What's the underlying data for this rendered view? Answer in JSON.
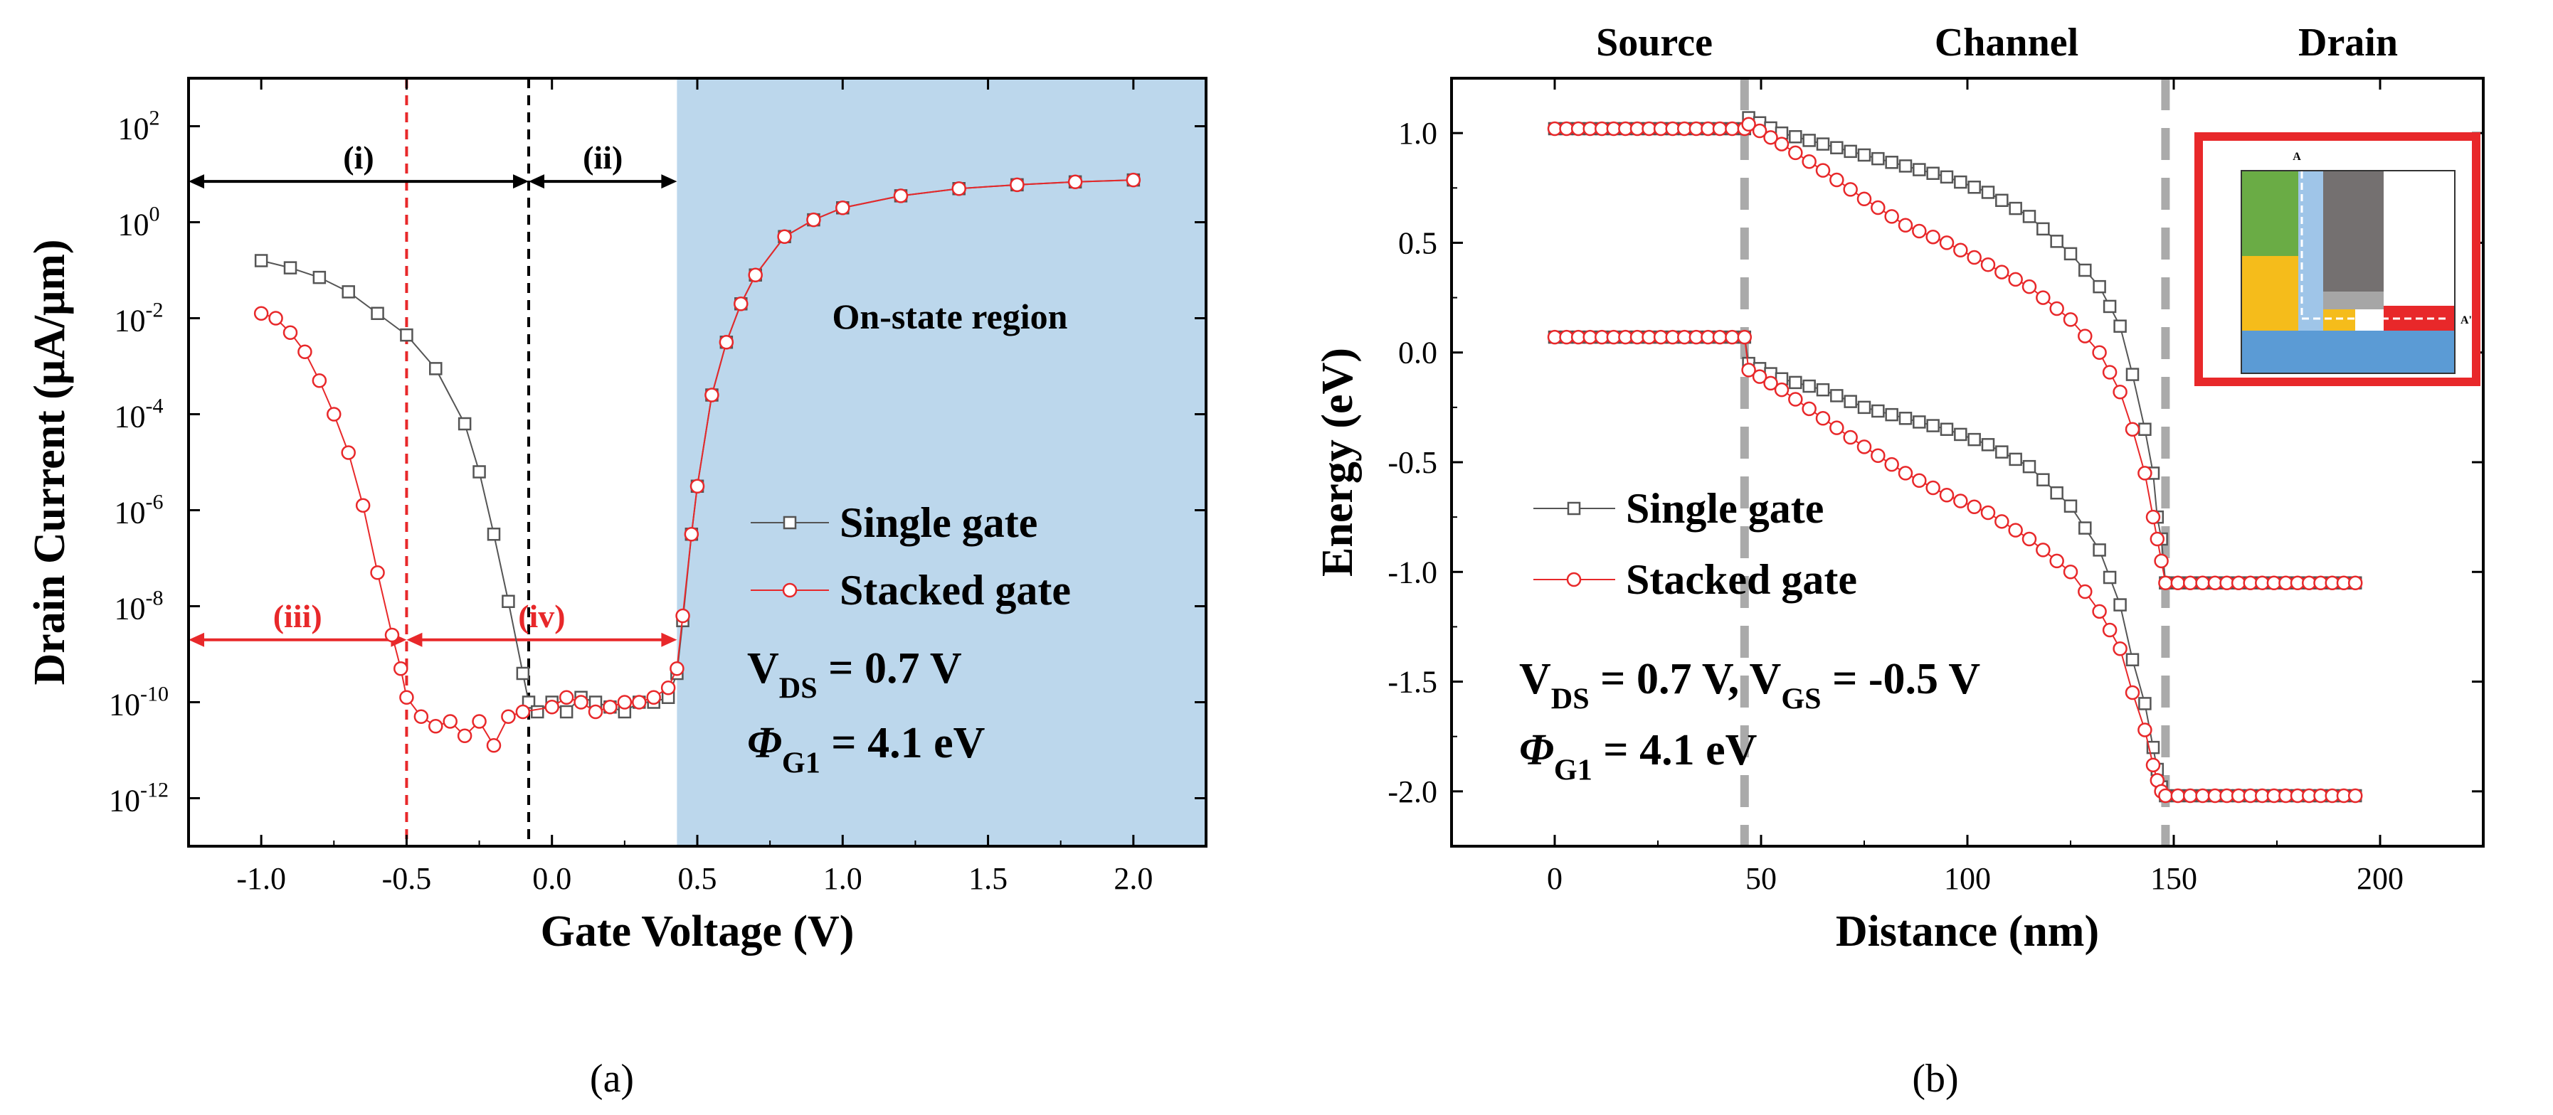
{
  "chart_data": [
    {
      "panel": "(a)",
      "type": "scatter",
      "xlabel": "Gate Voltage (V)",
      "ylabel": "Drain Current (μA/μm)",
      "xlim": [
        -1.25,
        2.25
      ],
      "ylim_log10": [
        -13,
        3
      ],
      "yscale": "log",
      "xticks": [
        "-1.0",
        "-0.5",
        "0.0",
        "0.5",
        "1.0",
        "1.5",
        "2.0"
      ],
      "yticks": [
        {
          "base": "10",
          "exp": "2",
          "log": 2
        },
        {
          "base": "10",
          "exp": "0",
          "log": 0
        },
        {
          "base": "10",
          "exp": "-2",
          "log": -2
        },
        {
          "base": "10",
          "exp": "-4",
          "log": -4
        },
        {
          "base": "10",
          "exp": "-6",
          "log": -6
        },
        {
          "base": "10",
          "exp": "-8",
          "log": -8
        },
        {
          "base": "10",
          "exp": "-10",
          "log": -10
        },
        {
          "base": "10",
          "exp": "-12",
          "log": -12
        }
      ],
      "series": [
        {
          "name": "Single gate",
          "marker": "square",
          "color": "#555555",
          "points": [
            [
              -1.0,
              -0.8
            ],
            [
              -0.9,
              -0.95
            ],
            [
              -0.8,
              -1.15
            ],
            [
              -0.7,
              -1.45
            ],
            [
              -0.6,
              -1.9
            ],
            [
              -0.5,
              -2.35
            ],
            [
              -0.4,
              -3.05
            ],
            [
              -0.3,
              -4.2
            ],
            [
              -0.25,
              -5.2
            ],
            [
              -0.2,
              -6.5
            ],
            [
              -0.15,
              -7.9
            ],
            [
              -0.1,
              -9.4
            ],
            [
              -0.08,
              -10.0
            ],
            [
              -0.05,
              -10.2
            ],
            [
              0.0,
              -10.0
            ],
            [
              0.05,
              -10.2
            ],
            [
              0.1,
              -9.9
            ],
            [
              0.15,
              -10.0
            ],
            [
              0.2,
              -10.1
            ],
            [
              0.25,
              -10.2
            ],
            [
              0.3,
              -10.0
            ],
            [
              0.35,
              -10.0
            ],
            [
              0.4,
              -9.9
            ],
            [
              0.43,
              -9.4
            ],
            [
              0.45,
              -8.3
            ],
            [
              0.48,
              -6.5
            ],
            [
              0.5,
              -5.5
            ],
            [
              0.55,
              -3.6
            ],
            [
              0.6,
              -2.5
            ],
            [
              0.65,
              -1.7
            ],
            [
              0.7,
              -1.1
            ],
            [
              0.8,
              -0.3
            ],
            [
              0.9,
              0.05
            ],
            [
              1.0,
              0.3
            ],
            [
              1.2,
              0.55
            ],
            [
              1.4,
              0.7
            ],
            [
              1.6,
              0.78
            ],
            [
              1.8,
              0.84
            ],
            [
              2.0,
              0.88
            ]
          ]
        },
        {
          "name": "Stacked gate",
          "marker": "circle",
          "color": "#e8282a",
          "points": [
            [
              -1.0,
              -1.9
            ],
            [
              -0.95,
              -2.0
            ],
            [
              -0.9,
              -2.3
            ],
            [
              -0.85,
              -2.7
            ],
            [
              -0.8,
              -3.3
            ],
            [
              -0.75,
              -4.0
            ],
            [
              -0.7,
              -4.8
            ],
            [
              -0.65,
              -5.9
            ],
            [
              -0.6,
              -7.3
            ],
            [
              -0.55,
              -8.6
            ],
            [
              -0.52,
              -9.3
            ],
            [
              -0.5,
              -9.9
            ],
            [
              -0.45,
              -10.3
            ],
            [
              -0.4,
              -10.5
            ],
            [
              -0.35,
              -10.4
            ],
            [
              -0.3,
              -10.7
            ],
            [
              -0.25,
              -10.4
            ],
            [
              -0.2,
              -10.9
            ],
            [
              -0.15,
              -10.3
            ],
            [
              -0.1,
              -10.2
            ],
            [
              0.0,
              -10.1
            ],
            [
              0.05,
              -9.9
            ],
            [
              0.1,
              -10.0
            ],
            [
              0.15,
              -10.2
            ],
            [
              0.2,
              -10.1
            ],
            [
              0.25,
              -10.0
            ],
            [
              0.3,
              -10.0
            ],
            [
              0.35,
              -9.9
            ],
            [
              0.4,
              -9.7
            ],
            [
              0.43,
              -9.3
            ],
            [
              0.45,
              -8.2
            ],
            [
              0.48,
              -6.5
            ],
            [
              0.5,
              -5.5
            ],
            [
              0.55,
              -3.6
            ],
            [
              0.6,
              -2.5
            ],
            [
              0.65,
              -1.7
            ],
            [
              0.7,
              -1.1
            ],
            [
              0.8,
              -0.3
            ],
            [
              0.9,
              0.05
            ],
            [
              1.0,
              0.3
            ],
            [
              1.2,
              0.55
            ],
            [
              1.4,
              0.7
            ],
            [
              1.6,
              0.78
            ],
            [
              1.8,
              0.84
            ],
            [
              2.0,
              0.88
            ]
          ]
        }
      ],
      "legend": [
        "Single gate",
        "Stacked gate"
      ],
      "legend_position": "right-center",
      "annotations": {
        "on_state_label": "On-state region",
        "on_state_from_x": 0.43,
        "region_i": "(i)",
        "region_ii": "(ii)",
        "region_iii": "(iii)",
        "region_iv": "(iv)",
        "arrow_i_from": -1.25,
        "arrow_i_to": -0.08,
        "arrow_i_log": 0.85,
        "arrow_ii_from": -0.08,
        "arrow_ii_to": 0.43,
        "arrow_ii_log": 0.85,
        "arrow_iii_from": -1.25,
        "arrow_iii_to": -0.5,
        "arrow_iii_log": -8.7,
        "arrow_iv_from": -0.5,
        "arrow_iv_to": 0.43,
        "arrow_iv_log": -8.7,
        "red_dashed_x": -0.5,
        "black_dashed_x": -0.08,
        "vds": {
          "main": "V",
          "sub": "DS",
          "value": " = 0.7 V"
        },
        "phi": {
          "main": "Φ",
          "sub": "G1",
          "value": " = 4.1 eV"
        }
      }
    },
    {
      "panel": "(b)",
      "type": "scatter",
      "xlabel": "Distance (nm)",
      "ylabel": "Energy (eV)",
      "xlim": [
        -25,
        225
      ],
      "ylim": [
        -2.25,
        1.25
      ],
      "xticks": [
        "0",
        "50",
        "100",
        "150",
        "200"
      ],
      "yticks": [
        "1.0",
        "0.5",
        "0.0",
        "-0.5",
        "-1.0",
        "-1.5",
        "-2.0"
      ],
      "region_labels": [
        "Source",
        "Channel",
        "Drain"
      ],
      "dashed_x": [
        46,
        148
      ],
      "series": [
        {
          "name": "Single gate",
          "marker": "square",
          "color": "#555555",
          "points_upper": [
            [
              0,
              1.02
            ],
            [
              20,
              1.02
            ],
            [
              40,
              1.02
            ],
            [
              46,
              1.02
            ],
            [
              47,
              1.07
            ],
            [
              55,
              1.0
            ],
            [
              65,
              0.95
            ],
            [
              75,
              0.9
            ],
            [
              85,
              0.85
            ],
            [
              95,
              0.8
            ],
            [
              105,
              0.73
            ],
            [
              115,
              0.62
            ],
            [
              125,
              0.45
            ],
            [
              132,
              0.3
            ],
            [
              137,
              0.12
            ],
            [
              140,
              -0.1
            ],
            [
              143,
              -0.35
            ],
            [
              145,
              -0.55
            ],
            [
              146,
              -0.75
            ],
            [
              147,
              -0.85
            ],
            [
              148,
              -1.05
            ],
            [
              160,
              -1.05
            ],
            [
              180,
              -1.05
            ],
            [
              194,
              -1.05
            ]
          ],
          "points_lower": [
            [
              0,
              0.07
            ],
            [
              20,
              0.07
            ],
            [
              40,
              0.07
            ],
            [
              46,
              0.07
            ],
            [
              47,
              -0.05
            ],
            [
              55,
              -0.12
            ],
            [
              65,
              -0.17
            ],
            [
              75,
              -0.25
            ],
            [
              85,
              -0.3
            ],
            [
              95,
              -0.35
            ],
            [
              105,
              -0.42
            ],
            [
              115,
              -0.52
            ],
            [
              125,
              -0.7
            ],
            [
              132,
              -0.9
            ],
            [
              137,
              -1.15
            ],
            [
              140,
              -1.4
            ],
            [
              143,
              -1.6
            ],
            [
              145,
              -1.8
            ],
            [
              146,
              -1.9
            ],
            [
              147,
              -1.98
            ],
            [
              148,
              -2.02
            ],
            [
              160,
              -2.02
            ],
            [
              180,
              -2.02
            ],
            [
              194,
              -2.02
            ]
          ]
        },
        {
          "name": "Stacked gate",
          "marker": "circle",
          "color": "#e8282a",
          "points_upper": [
            [
              0,
              1.02
            ],
            [
              20,
              1.02
            ],
            [
              40,
              1.02
            ],
            [
              46,
              1.02
            ],
            [
              47,
              1.04
            ],
            [
              55,
              0.95
            ],
            [
              65,
              0.83
            ],
            [
              75,
              0.7
            ],
            [
              85,
              0.58
            ],
            [
              95,
              0.5
            ],
            [
              105,
              0.4
            ],
            [
              115,
              0.3
            ],
            [
              125,
              0.15
            ],
            [
              132,
              0.0
            ],
            [
              137,
              -0.18
            ],
            [
              140,
              -0.35
            ],
            [
              143,
              -0.55
            ],
            [
              145,
              -0.75
            ],
            [
              146,
              -0.85
            ],
            [
              147,
              -0.95
            ],
            [
              148,
              -1.05
            ],
            [
              160,
              -1.05
            ],
            [
              180,
              -1.05
            ],
            [
              194,
              -1.05
            ]
          ],
          "points_lower": [
            [
              0,
              0.07
            ],
            [
              20,
              0.07
            ],
            [
              40,
              0.07
            ],
            [
              46,
              0.07
            ],
            [
              47,
              -0.08
            ],
            [
              55,
              -0.17
            ],
            [
              65,
              -0.3
            ],
            [
              75,
              -0.43
            ],
            [
              85,
              -0.55
            ],
            [
              95,
              -0.65
            ],
            [
              105,
              -0.73
            ],
            [
              115,
              -0.85
            ],
            [
              125,
              -1.0
            ],
            [
              132,
              -1.18
            ],
            [
              137,
              -1.35
            ],
            [
              140,
              -1.55
            ],
            [
              143,
              -1.72
            ],
            [
              145,
              -1.88
            ],
            [
              146,
              -1.95
            ],
            [
              147,
              -2.0
            ],
            [
              148,
              -2.02
            ],
            [
              160,
              -2.02
            ],
            [
              180,
              -2.02
            ],
            [
              194,
              -2.02
            ]
          ]
        }
      ],
      "legend": [
        "Single gate",
        "Stacked gate"
      ],
      "legend_position": "left-center",
      "annotations": {
        "vds": {
          "main": "V",
          "sub": "DS",
          "value": " = 0.7 V, "
        },
        "vgs": {
          "main": "V",
          "sub": "GS",
          "value": " = -0.5 V"
        },
        "phi": {
          "main": "Φ",
          "sub": "G1",
          "value": " = 4.1 eV"
        },
        "inset_labels": [
          "A",
          "A'"
        ],
        "inset_colors": {
          "frame": "#e8282a",
          "green": "#6aac45",
          "yellow": "#f5bc1b",
          "blue": "#5b9bd5",
          "gray": "#747070",
          "light_gray": "#a6a6a6",
          "red": "#e8282a"
        }
      }
    }
  ],
  "captions": [
    "(a)",
    "(b)"
  ]
}
